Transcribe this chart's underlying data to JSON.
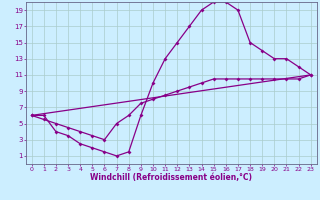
{
  "xlabel": "Windchill (Refroidissement éolien,°C)",
  "bg_color": "#cceeff",
  "line_color": "#880088",
  "grid_color": "#aacccc",
  "axis_color": "#666688",
  "xlim": [
    -0.5,
    23.5
  ],
  "ylim": [
    0,
    20
  ],
  "xticks": [
    0,
    1,
    2,
    3,
    4,
    5,
    6,
    7,
    8,
    9,
    10,
    11,
    12,
    13,
    14,
    15,
    16,
    17,
    18,
    19,
    20,
    21,
    22,
    23
  ],
  "yticks": [
    1,
    3,
    5,
    7,
    9,
    11,
    13,
    15,
    17,
    19
  ],
  "curve1_x": [
    0,
    1,
    2,
    3,
    4,
    5,
    6,
    7,
    8,
    9,
    10,
    11,
    12,
    13,
    14,
    15,
    16,
    17,
    18,
    19,
    20,
    21,
    22,
    23
  ],
  "curve1_y": [
    6,
    6,
    4,
    3.5,
    2.5,
    2,
    1.5,
    1,
    1.5,
    6,
    10,
    13,
    15,
    17,
    19,
    20,
    20,
    19,
    15,
    14,
    13,
    13,
    12,
    11
  ],
  "curve2_x": [
    0,
    1,
    2,
    3,
    4,
    5,
    6,
    7,
    8,
    9,
    10,
    11,
    12,
    13,
    14,
    15,
    16,
    17,
    18,
    19,
    20,
    21,
    22,
    23
  ],
  "curve2_y": [
    6,
    5.5,
    5,
    4.5,
    4,
    3.5,
    3,
    5,
    6,
    7.5,
    8,
    8.5,
    9,
    9.5,
    10,
    10.5,
    10.5,
    10.5,
    10.5,
    10.5,
    10.5,
    10.5,
    10.5,
    11
  ],
  "curve3_x": [
    0,
    23
  ],
  "curve3_y": [
    6,
    11
  ]
}
